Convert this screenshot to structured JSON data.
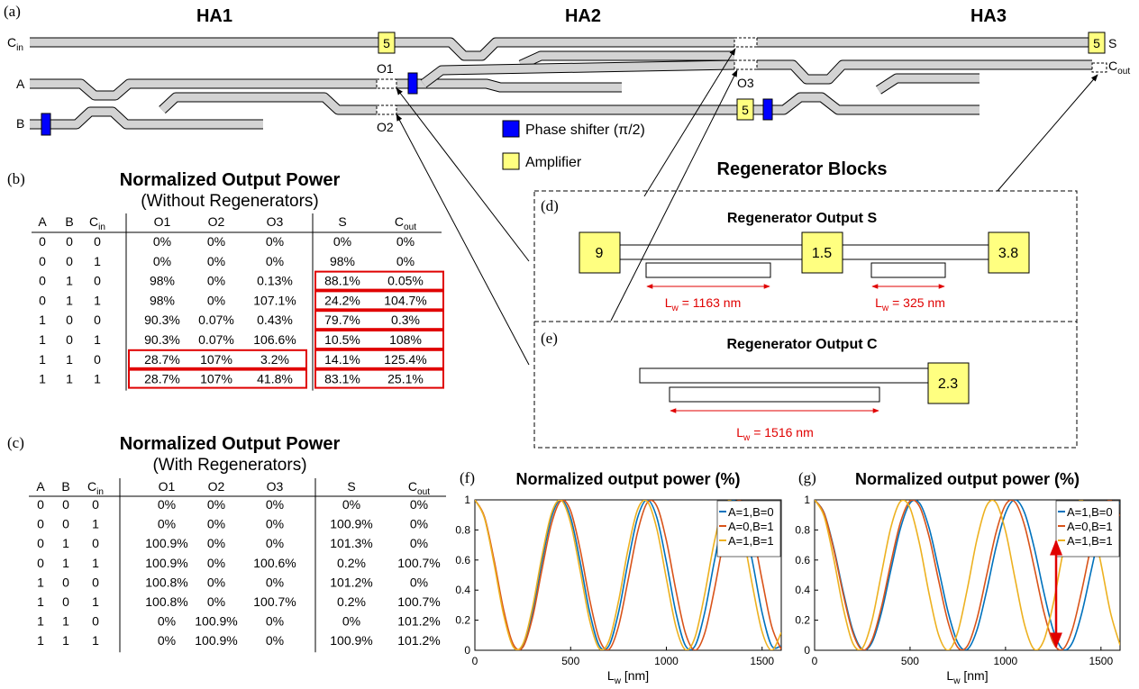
{
  "panel_labels": [
    "(a)",
    "(b)",
    "(c)",
    "(d)",
    "(e)",
    "(f)",
    "(g)"
  ],
  "circuit": {
    "stages": [
      "HA1",
      "HA2",
      "HA3"
    ],
    "ports": {
      "cin": {
        "text": "C",
        "sub": "in"
      },
      "a": "A",
      "b": "B",
      "o1": "O1",
      "o2": "O2",
      "o3": "O3",
      "s": "S",
      "cout": {
        "text": "C",
        "sub": "out"
      }
    },
    "amplifier_gains": [
      "5",
      "5",
      "5"
    ],
    "legend": {
      "phase_shifter": "Phase shifter (π/2)",
      "amplifier": "Amplifier"
    }
  },
  "regenerators": {
    "title": "Regenerator Blocks",
    "output_s": {
      "title": "Regenerator Output S",
      "gains": [
        "9",
        "1.5",
        "3.8"
      ],
      "lengths": [
        {
          "text": "L",
          "sub": "w",
          "rest": " = 1163 nm"
        },
        {
          "text": "L",
          "sub": "w",
          "rest": " = 325 nm"
        }
      ]
    },
    "output_c": {
      "title": "Regenerator Output C",
      "gains": [
        "2.3"
      ],
      "lengths": [
        {
          "text": "L",
          "sub": "w",
          "rest": " = 1516 nm"
        }
      ]
    }
  },
  "tables": [
    {
      "title": "Normalized Output Power",
      "subtitle": "(Without Regenerators)",
      "header": [
        "A",
        "B",
        {
          "text": "C",
          "sub": "in"
        },
        "O1",
        "O2",
        "O3",
        "S",
        {
          "text": "C",
          "sub": "out"
        }
      ],
      "rows": [
        [
          "0",
          "0",
          "0",
          "0%",
          "0%",
          "0%",
          "0%",
          "0%"
        ],
        [
          "0",
          "0",
          "1",
          "0%",
          "0%",
          "0%",
          "98%",
          "0%"
        ],
        [
          "0",
          "1",
          "0",
          "98%",
          "0%",
          "0.13%",
          "88.1%",
          "0.05%"
        ],
        [
          "0",
          "1",
          "1",
          "98%",
          "0%",
          "107.1%",
          "24.2%",
          "104.7%"
        ],
        [
          "1",
          "0",
          "0",
          "90.3%",
          "0.07%",
          "0.43%",
          "79.7%",
          "0.3%"
        ],
        [
          "1",
          "0",
          "1",
          "90.3%",
          "0.07%",
          "106.6%",
          "10.5%",
          "108%"
        ],
        [
          "1",
          "1",
          "0",
          "28.7%",
          "107%",
          "3.2%",
          "14.1%",
          "125.4%"
        ],
        [
          "1",
          "1",
          "1",
          "28.7%",
          "107%",
          "41.8%",
          "83.1%",
          "25.1%"
        ]
      ]
    },
    {
      "title": "Normalized Output Power",
      "subtitle": "(With Regenerators)",
      "header": [
        "A",
        "B",
        {
          "text": "C",
          "sub": "in"
        },
        "O1",
        "O2",
        "O3",
        "S",
        {
          "text": "C",
          "sub": "out"
        }
      ],
      "rows": [
        [
          "0",
          "0",
          "0",
          "0%",
          "0%",
          "0%",
          "0%",
          "0%"
        ],
        [
          "0",
          "0",
          "1",
          "0%",
          "0%",
          "0%",
          "100.9%",
          "0%"
        ],
        [
          "0",
          "1",
          "0",
          "100.9%",
          "0%",
          "0%",
          "101.3%",
          "0%"
        ],
        [
          "0",
          "1",
          "1",
          "100.9%",
          "0%",
          "100.6%",
          "0.2%",
          "100.7%"
        ],
        [
          "1",
          "0",
          "0",
          "100.8%",
          "0%",
          "0%",
          "101.2%",
          "0%"
        ],
        [
          "1",
          "0",
          "1",
          "100.8%",
          "0%",
          "100.7%",
          "0.2%",
          "100.7%"
        ],
        [
          "1",
          "1",
          "0",
          "0%",
          "100.9%",
          "0%",
          "0%",
          "101.2%"
        ],
        [
          "1",
          "1",
          "1",
          "0%",
          "100.9%",
          "0%",
          "100.9%",
          "101.2%"
        ]
      ]
    }
  ],
  "chart_data": [
    {
      "type": "line",
      "title": "Normalized output power (%)",
      "x_label": {
        "text": "L",
        "sub": "w",
        "rest": " [nm]"
      },
      "x": [
        0,
        50,
        100,
        150,
        200,
        250,
        300,
        350,
        400,
        450,
        500,
        550,
        600,
        650,
        700,
        750,
        800,
        850,
        900,
        950,
        1000,
        1050,
        1100,
        1150,
        1200,
        1250,
        1300,
        1350,
        1400,
        1450,
        1500,
        1550,
        1600
      ],
      "xlim": [
        0,
        1600
      ],
      "xticks": [
        0,
        500,
        1000,
        1500
      ],
      "ylim": [
        0,
        1
      ],
      "yticks": [
        0,
        0.2,
        0.4,
        0.6,
        0.8,
        1
      ],
      "legend": "upper right",
      "series": [
        {
          "name": "A=1,B=0",
          "color": "#0072bd",
          "values": [
            1,
            0.883,
            0.587,
            0.25,
            0.03,
            0.03,
            0.25,
            0.587,
            0.883,
            1,
            0.883,
            0.587,
            0.25,
            0.03,
            0.03,
            0.25,
            0.587,
            0.883,
            1,
            0.883,
            0.587,
            0.25,
            0.03,
            0.03,
            0.25,
            0.587,
            0.883,
            1,
            0.883,
            0.587,
            0.25,
            0.03,
            0.03
          ]
        },
        {
          "name": "A=0,B=1",
          "color": "#d95319",
          "values": [
            1,
            0.888,
            0.602,
            0.27,
            0.041,
            0.019,
            0.212,
            0.535,
            0.841,
            0.995,
            0.927,
            0.668,
            0.333,
            0.073,
            0.005,
            0.159,
            0.466,
            0.788,
            0.981,
            0.959,
            0.73,
            0.398,
            0.112,
            0,
            0.112,
            0.398,
            0.73,
            0.959,
            0.981,
            0.788,
            0.466,
            0.159,
            0.005
          ]
        },
        {
          "name": "A=1,B=1",
          "color": "#edb120",
          "values": [
            1,
            0.879,
            0.576,
            0.236,
            0.023,
            0.04,
            0.279,
            0.625,
            0.91,
            0.998,
            0.845,
            0.527,
            0.195,
            0.011,
            0.062,
            0.325,
            0.672,
            0.936,
            0.99,
            0.808,
            0.477,
            0.157,
            0.003,
            0.088,
            0.372,
            0.718,
            0.958,
            0.978,
            0.767,
            0.427,
            0.123,
            0,
            0.118
          ]
        }
      ]
    },
    {
      "type": "line",
      "title": "Normalized output power (%)",
      "x_label": {
        "text": "L",
        "sub": "w",
        "rest": " [nm]"
      },
      "x": [
        0,
        50,
        100,
        150,
        200,
        250,
        300,
        350,
        400,
        450,
        500,
        550,
        600,
        650,
        700,
        750,
        800,
        850,
        900,
        950,
        1000,
        1050,
        1100,
        1150,
        1200,
        1250,
        1300,
        1350,
        1400,
        1450,
        1500,
        1550,
        1600
      ],
      "xlim": [
        0,
        1600
      ],
      "xticks": [
        0,
        500,
        1000,
        1500
      ],
      "ylim": [
        0,
        1
      ],
      "yticks": [
        0,
        0.2,
        0.4,
        0.6,
        0.8,
        1
      ],
      "legend": "upper right",
      "series": [
        {
          "name": "A=1,B=0",
          "color": "#0072bd",
          "values": [
            1,
            0.913,
            0.683,
            0.389,
            0.133,
            0.006,
            0.05,
            0.25,
            0.537,
            0.812,
            0.978,
            0.978,
            0.812,
            0.537,
            0.25,
            0.05,
            0.006,
            0.133,
            0.389,
            0.683,
            0.913,
            1,
            0.913,
            0.683,
            0.389,
            0.133,
            0.006,
            0.05,
            0.25,
            0.537,
            0.812,
            0.978,
            0.978
          ]
        },
        {
          "name": "A=0,B=1",
          "color": "#d95319",
          "values": [
            1,
            0.91,
            0.672,
            0.372,
            0.118,
            0.002,
            0.066,
            0.286,
            0.584,
            0.851,
            0.992,
            0.955,
            0.754,
            0.462,
            0.183,
            0.019,
            0.028,
            0.207,
            0.492,
            0.78,
            0.967,
            0.985,
            0.828,
            0.553,
            0.259,
            0.051,
            0.006,
            0.138,
            0.401,
            0.7,
            0.926,
            0.999,
            0.892
          ]
        },
        {
          "name": "A=1,B=1",
          "color": "#edb120",
          "values": [
            1,
            0.89,
            0.609,
            0.28,
            0.047,
            0.014,
            0.194,
            0.509,
            0.819,
            0.99,
            0.945,
            0.705,
            0.374,
            0.1,
            0,
            0.121,
            0.408,
            0.735,
            0.959,
            0.982,
            0.792,
            0.475,
            0.168,
            0.007,
            0.063,
            0.31,
            0.642,
            0.91,
            0.999,
            0.868,
            0.576,
            0.25,
            0.034
          ]
        }
      ]
    }
  ]
}
